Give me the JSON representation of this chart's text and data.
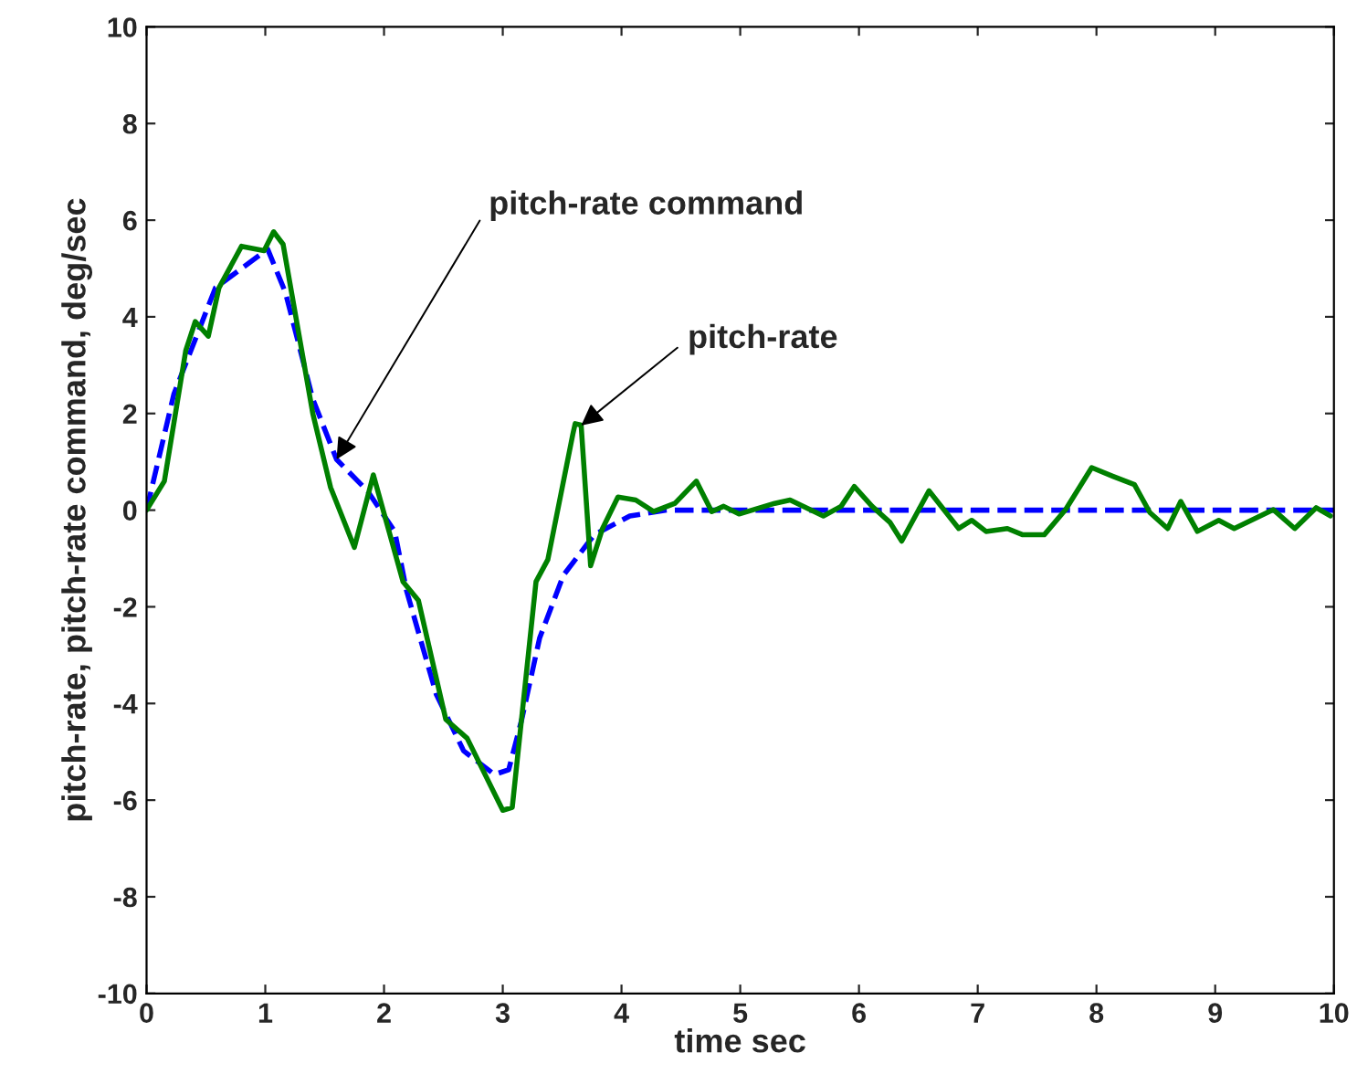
{
  "chart_data": {
    "type": "line",
    "xlabel": "time sec",
    "ylabel": "pitch-rate, pitch-rate command, deg/sec",
    "xlim": [
      0,
      10
    ],
    "ylim": [
      -10,
      10
    ],
    "xticks": [
      0,
      1,
      2,
      3,
      4,
      5,
      6,
      7,
      8,
      9,
      10
    ],
    "yticks": [
      -10,
      -8,
      -6,
      -4,
      -2,
      0,
      2,
      4,
      6,
      8,
      10
    ],
    "grid": false,
    "legend": false,
    "series": [
      {
        "color": "#0000ff",
        "line_style": "dashed",
        "x": [
          0,
          0.23,
          0.58,
          1.02,
          1.17,
          1.4,
          1.6,
          1.86,
          2.09,
          2.19,
          2.44,
          2.67,
          2.93,
          3.05,
          3.16,
          3.31,
          3.51,
          3.77,
          4.07,
          4.38,
          10
        ],
        "values": [
          0,
          2.4,
          4.6,
          5.4,
          4.5,
          2.3,
          1.05,
          0.4,
          -0.44,
          -1.67,
          -3.81,
          -4.98,
          -5.47,
          -5.37,
          -4.33,
          -2.65,
          -1.35,
          -0.51,
          -0.12,
          0,
          0
        ]
      },
      {
        "color": "#008000",
        "line_style": "solid",
        "x": [
          0,
          0.15,
          0.33,
          0.41,
          0.52,
          0.61,
          0.8,
          0.99,
          1.07,
          1.15,
          1.4,
          1.55,
          1.75,
          1.91,
          2.16,
          2.29,
          2.52,
          2.7,
          3.0,
          3.08,
          3.28,
          3.38,
          3.59,
          3.61,
          3.66,
          3.74,
          3.84,
          3.97,
          4.12,
          4.27,
          4.45,
          4.63,
          4.76,
          4.86,
          4.99,
          5.29,
          5.42,
          5.7,
          5.85,
          5.96,
          6.11,
          6.26,
          6.36,
          6.59,
          6.84,
          6.95,
          7.07,
          7.25,
          7.38,
          7.56,
          7.74,
          7.96,
          8.14,
          8.32,
          8.45,
          8.6,
          8.71,
          8.85,
          9.03,
          9.16,
          9.49,
          9.67,
          9.85,
          9.97
        ],
        "values": [
          0,
          0.6,
          3.3,
          3.9,
          3.6,
          4.6,
          5.46,
          5.37,
          5.76,
          5.5,
          2.0,
          0.47,
          -0.77,
          0.73,
          -1.48,
          -1.87,
          -4.33,
          -4.72,
          -6.21,
          -6.15,
          -1.48,
          -1.02,
          1.57,
          1.79,
          1.76,
          -1.15,
          -0.38,
          0.27,
          0.21,
          -0.03,
          0.14,
          0.6,
          -0.03,
          0.08,
          -0.08,
          0.14,
          0.21,
          -0.12,
          0.08,
          0.49,
          0.08,
          -0.25,
          -0.64,
          0.4,
          -0.38,
          -0.21,
          -0.44,
          -0.38,
          -0.51,
          -0.51,
          0.01,
          0.88,
          0.7,
          0.53,
          -0.05,
          -0.38,
          0.18,
          -0.44,
          -0.21,
          -0.38,
          0.01,
          -0.38,
          0.05,
          -0.12
        ]
      }
    ],
    "annotations": [
      {
        "text": "pitch-rate command",
        "x": 1.6,
        "y": 1.05
      },
      {
        "text": "pitch-rate",
        "x": 3.66,
        "y": 1.75
      }
    ]
  }
}
